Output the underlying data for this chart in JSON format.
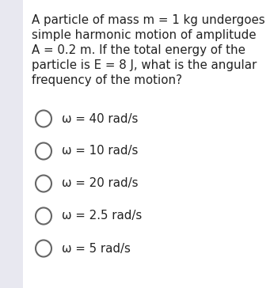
{
  "background_color": "#e8e8f0",
  "panel_color": "#ffffff",
  "question_lines": [
    "A particle of mass m = 1 kg undergoes",
    "simple harmonic motion of amplitude",
    "A = 0.2 m. If the total energy of the",
    "particle is E = 8 J, what is the angular",
    "frequency of the motion?"
  ],
  "options": [
    "ω = 40 rad/s",
    "ω = 10 rad/s",
    "ω = 20 rad/s",
    "ω = 2.5 rad/s",
    "ω = 5 rad/s"
  ],
  "question_fontsize": 10.8,
  "option_fontsize": 10.8,
  "text_color": "#222222",
  "circle_edge_color": "#666666",
  "fig_width": 3.46,
  "fig_height": 3.64,
  "dpi": 100
}
